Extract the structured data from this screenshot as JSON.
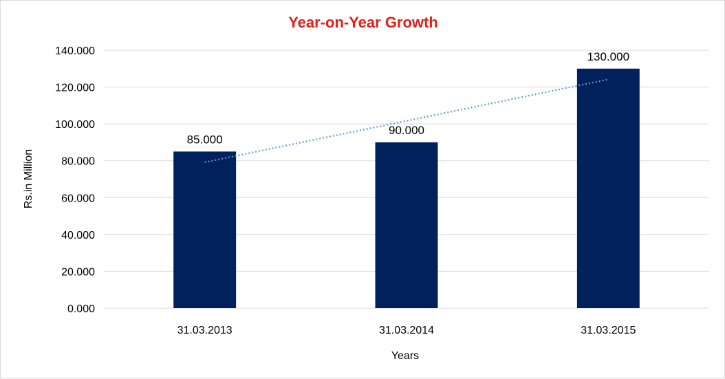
{
  "chart_data": {
    "type": "bar",
    "title": "Year-on-Year Growth",
    "xlabel": "Years",
    "ylabel": "Rs.in Million",
    "categories": [
      "31.03.2013",
      "31.03.2014",
      "31.03.2015"
    ],
    "values": [
      85,
      90,
      130
    ],
    "data_labels": [
      "85.000",
      "90.000",
      "130.000"
    ],
    "ylim": [
      0,
      140
    ],
    "yticks": [
      0,
      20,
      40,
      60,
      80,
      100,
      120,
      140
    ],
    "ytick_labels": [
      "0.000",
      "20.000",
      "40.000",
      "60.000",
      "80.000",
      "100.000",
      "120.000",
      "140.000"
    ],
    "grid": true,
    "legend": "none",
    "trendline": {
      "type": "linear",
      "style": "dotted",
      "color": "#5b9bd5"
    },
    "colors": {
      "bar": "#00215b",
      "title": "#e0201b",
      "grid": "#d9d9d9"
    }
  }
}
